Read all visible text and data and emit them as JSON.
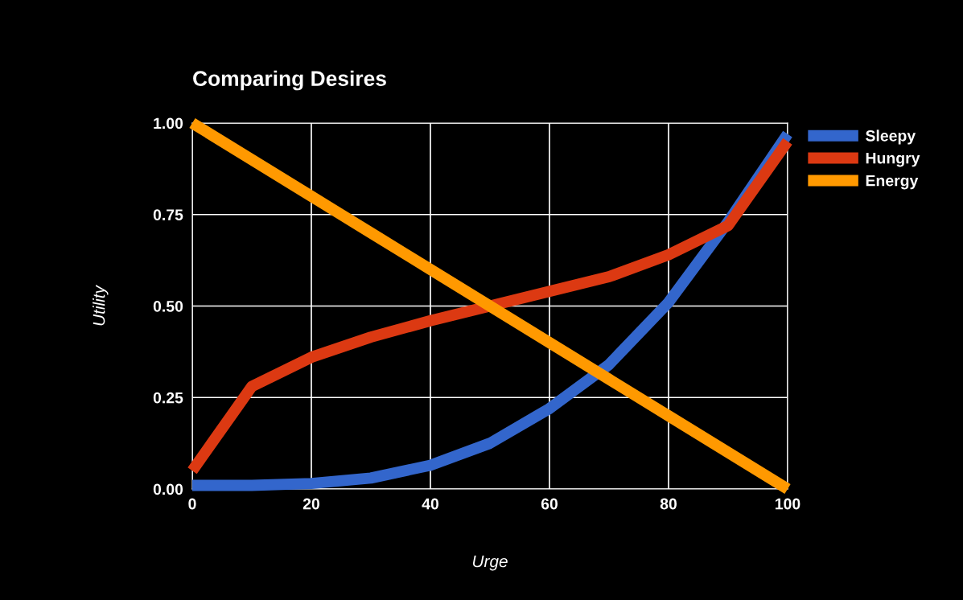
{
  "chart_data": {
    "type": "line",
    "title": "Comparing Desires",
    "xlabel": "Urge",
    "ylabel": "Utility",
    "x": [
      0,
      10,
      20,
      30,
      40,
      50,
      60,
      70,
      80,
      90,
      100
    ],
    "series": [
      {
        "name": "Sleepy",
        "color": "#3366cc",
        "values": [
          0.01,
          0.01,
          0.015,
          0.03,
          0.065,
          0.125,
          0.22,
          0.34,
          0.51,
          0.73,
          0.97
        ]
      },
      {
        "name": "Hungry",
        "color": "#dc3912",
        "values": [
          0.05,
          0.28,
          0.36,
          0.415,
          0.46,
          0.5,
          0.54,
          0.58,
          0.64,
          0.72,
          0.95
        ]
      },
      {
        "name": "Energy",
        "color": "#ff9900",
        "values": [
          1.0,
          0.9,
          0.8,
          0.7,
          0.6,
          0.5,
          0.4,
          0.3,
          0.2,
          0.1,
          0.0
        ]
      }
    ],
    "xlim": [
      0,
      100
    ],
    "xticks": [
      0,
      20,
      40,
      60,
      80,
      100
    ],
    "ylim": [
      0,
      1
    ],
    "yticks": [
      {
        "value": 0,
        "label": "0.00"
      },
      {
        "value": 0.25,
        "label": "0.25"
      },
      {
        "value": 0.5,
        "label": "0.50"
      },
      {
        "value": 0.75,
        "label": "0.75"
      },
      {
        "value": 1,
        "label": "1.00"
      }
    ],
    "grid": true,
    "legend": "top right",
    "marker": "none",
    "line_style": "solid"
  }
}
